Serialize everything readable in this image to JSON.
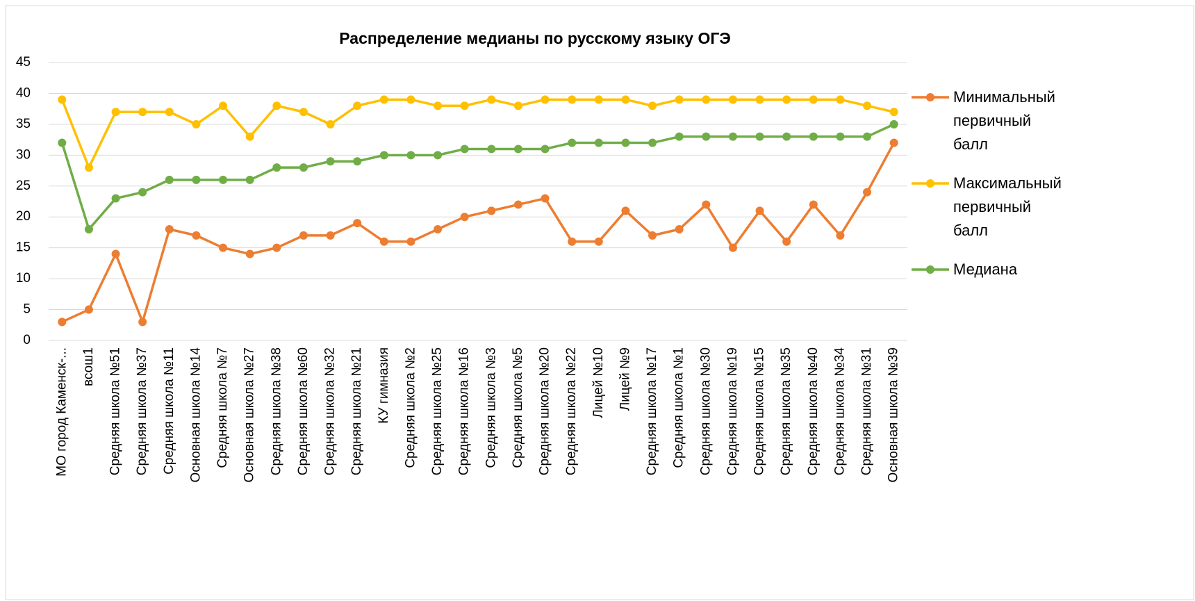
{
  "chart_data": {
    "type": "line",
    "title": "Распределение медианы по русскому языку ОГЭ",
    "categories": [
      "МО город Каменск-...",
      "всош1",
      "Средняя школа №51",
      "Средняя школа №37",
      "Средняя школа №11",
      "Основная школа №14",
      "Средняя школа №7",
      "Основная школа №27",
      "Средняя школа №38",
      "Средняя школа №60",
      "Средняя школа №32",
      "Средняя школа №21",
      "КУ гимназия",
      "Средняя школа №2",
      "Средняя школа №25",
      "Средняя школа №16",
      "Средняя школа №3",
      "Средняя школа №5",
      "Средняя школа №20",
      "Средняя школа №22",
      "Лицей №10",
      "Лицей №9",
      "Средняя школа №17",
      "Средняя школа №1",
      "Средняя школа №30",
      "Средняя школа №19",
      "Средняя школа №15",
      "Средняя школа №35",
      "Средняя школа №40",
      "Средняя школа №34",
      "Средняя школа №31",
      "Основная школа №39"
    ],
    "series": [
      {
        "name": "Минимальный первичный балл",
        "color": "#ED7D31",
        "values": [
          3,
          5,
          14,
          3,
          18,
          17,
          15,
          14,
          15,
          17,
          17,
          19,
          16,
          16,
          18,
          20,
          21,
          22,
          23,
          16,
          16,
          21,
          17,
          18,
          22,
          15,
          21,
          16,
          22,
          17,
          24,
          32
        ]
      },
      {
        "name": "Максимальный первичный балл",
        "color": "#FFC000",
        "values": [
          39,
          28,
          37,
          37,
          37,
          35,
          38,
          33,
          38,
          37,
          35,
          38,
          39,
          39,
          38,
          38,
          39,
          38,
          39,
          39,
          39,
          39,
          38,
          39,
          39,
          39,
          39,
          39,
          39,
          39,
          38,
          37
        ]
      },
      {
        "name": "Медиана",
        "color": "#70AD47",
        "values": [
          32,
          18,
          23,
          24,
          26,
          26,
          26,
          26,
          28,
          28,
          29,
          29,
          30,
          30,
          30,
          31,
          31,
          31,
          31,
          32,
          32,
          32,
          32,
          33,
          33,
          33,
          33,
          33,
          33,
          33,
          33,
          35
        ]
      }
    ],
    "ylim": [
      0,
      45
    ],
    "yticks": [
      0,
      5,
      10,
      15,
      20,
      25,
      30,
      35,
      40,
      45
    ],
    "grid": true,
    "legend": "right"
  }
}
